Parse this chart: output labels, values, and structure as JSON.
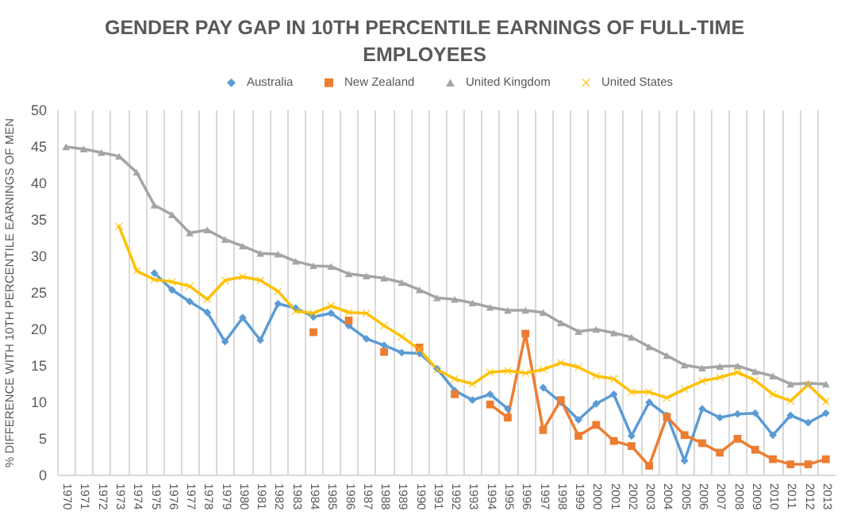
{
  "chart_data": {
    "type": "line",
    "title": "GENDER PAY GAP IN 10TH PERCENTILE EARNINGS OF FULL-TIME EMPLOYEES",
    "ylabel": "% DIFFERENCE WITH 10TH PERCENTILE EARNINGS OF MEN",
    "categories": [
      "1970",
      "1971",
      "1972",
      "1973",
      "1974",
      "1975",
      "1976",
      "1977",
      "1978",
      "1979",
      "1980",
      "1981",
      "1982",
      "1983",
      "1984",
      "1985",
      "1986",
      "1987",
      "1988",
      "1989",
      "1990",
      "1991",
      "1992",
      "1993",
      "1994",
      "1995",
      "1996",
      "1997",
      "1998",
      "1999",
      "2000",
      "2001",
      "2002",
      "2003",
      "2004",
      "2005",
      "2006",
      "2007",
      "2008",
      "2009",
      "2010",
      "2011",
      "2012",
      "2013"
    ],
    "series": [
      {
        "name": "Australia",
        "color": "#5b9bd5",
        "marker": "diamond",
        "values": [
          null,
          null,
          null,
          null,
          null,
          27.6,
          25.3,
          23.7,
          22.2,
          18.2,
          21.5,
          18.4,
          23.4,
          22.8,
          21.6,
          22.1,
          20.4,
          18.6,
          17.7,
          16.7,
          16.6,
          14.5,
          11.5,
          10.2,
          11.0,
          9.0,
          null,
          11.9,
          9.9,
          7.5,
          9.7,
          11.0,
          5.3,
          9.9,
          8.1,
          1.9,
          9.0,
          7.8,
          8.3,
          8.4,
          5.4,
          8.1,
          7.1,
          8.4
        ]
      },
      {
        "name": "New Zealand",
        "color": "#ed7d31",
        "marker": "square",
        "values": [
          null,
          null,
          null,
          null,
          null,
          null,
          null,
          null,
          null,
          null,
          null,
          null,
          null,
          null,
          19.5,
          null,
          21.1,
          null,
          16.8,
          null,
          17.4,
          null,
          11.0,
          null,
          9.6,
          7.8,
          19.3,
          6.1,
          10.2,
          5.3,
          6.8,
          4.6,
          3.9,
          1.2,
          7.9,
          5.4,
          4.3,
          3.0,
          4.9,
          3.4,
          2.1,
          1.4,
          1.4,
          2.1
        ]
      },
      {
        "name": "United Kingdom",
        "color": "#a5a5a5",
        "marker": "triangle",
        "values": [
          44.9,
          44.6,
          44.1,
          43.6,
          41.4,
          36.9,
          35.6,
          33.1,
          33.5,
          32.2,
          31.3,
          30.3,
          30.2,
          29.2,
          28.6,
          28.5,
          27.5,
          27.2,
          26.9,
          26.3,
          25.3,
          24.2,
          24.0,
          23.5,
          22.9,
          22.5,
          22.5,
          22.2,
          20.8,
          19.6,
          19.9,
          19.4,
          18.8,
          17.5,
          16.3,
          15.0,
          14.6,
          14.8,
          14.9,
          14.1,
          13.5,
          12.4,
          12.5,
          12.4
        ]
      },
      {
        "name": "United States",
        "color": "#ffc000",
        "marker": "cross",
        "values": [
          null,
          null,
          null,
          34.0,
          27.9,
          26.7,
          26.4,
          25.8,
          24.0,
          26.6,
          27.1,
          26.6,
          25.1,
          22.4,
          22.1,
          23.1,
          22.2,
          22.1,
          20.4,
          18.9,
          17.1,
          14.4,
          13.1,
          12.4,
          14.0,
          14.2,
          13.9,
          14.4,
          15.3,
          14.7,
          13.5,
          13.1,
          11.3,
          11.3,
          10.5,
          11.7,
          12.8,
          13.3,
          14.0,
          12.9,
          11.0,
          10.1,
          12.3,
          10.0
        ]
      }
    ],
    "ylim": [
      0,
      50
    ],
    "yticks": [
      0,
      5,
      10,
      15,
      20,
      25,
      30,
      35,
      40,
      45,
      50
    ],
    "grid": "x",
    "legend": "top",
    "line_style": "solid"
  }
}
